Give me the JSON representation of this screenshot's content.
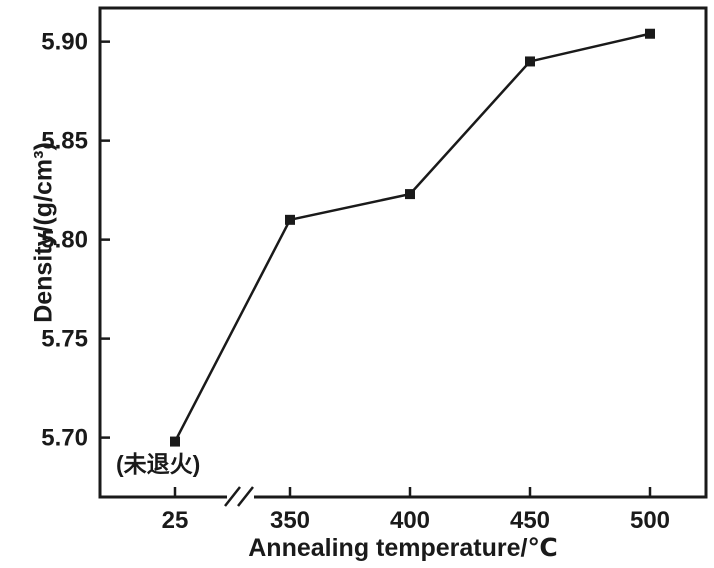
{
  "chart_data": {
    "type": "line",
    "title": "",
    "xlabel": "Annealing temperature/℃",
    "ylabel": "Density/(g/cm³)",
    "categories": [
      "25",
      "350",
      "400",
      "450",
      "500"
    ],
    "values": [
      5.698,
      5.81,
      5.823,
      5.89,
      5.904
    ],
    "series_name": "Density",
    "y_ticks": [
      "5.70",
      "5.75",
      "5.80",
      "5.85",
      "5.90"
    ],
    "ylim": [
      5.67,
      5.917
    ],
    "annotation_first_point": "(未退火)",
    "x_axis_break_between": [
      "25",
      "350"
    ],
    "marker": "filled-square",
    "line_color": "#1a1a1a",
    "background_color": "#ffffff",
    "grid": false,
    "legend": "none"
  }
}
